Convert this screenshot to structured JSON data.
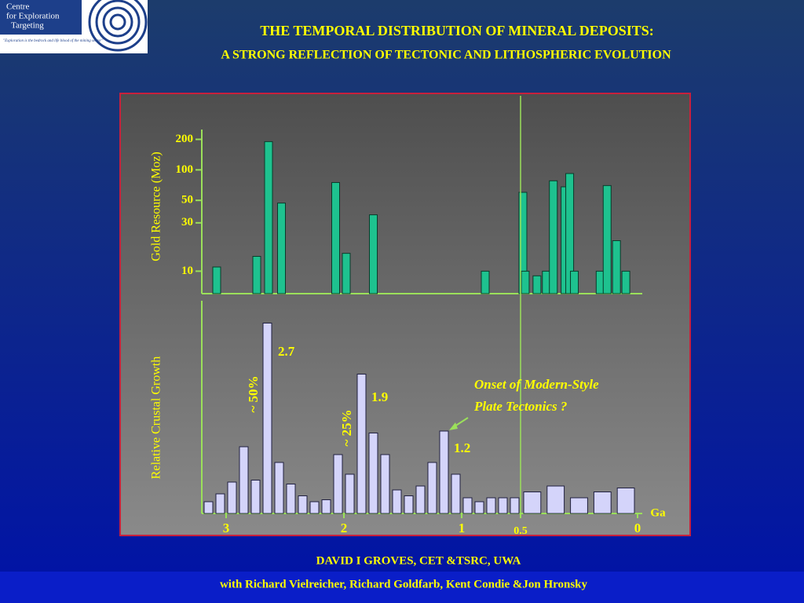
{
  "logo": {
    "lines": [
      "Centre",
      "for Exploration",
      "Targeting"
    ],
    "quote": "\"Exploration is the bedrock and life blood of the mining sector\""
  },
  "header": {
    "title": "THE TEMPORAL DISTRIBUTION OF MINERAL DEPOSITS:",
    "subtitle": "A STRONG REFLECTION OF TECTONIC AND LITHOSPHERIC EVOLUTION"
  },
  "chart_data": [
    {
      "type": "bar",
      "y_label": "Gold Resource (Moz)",
      "color": "#1ec28f",
      "log_scale": true,
      "x": [
        3.08,
        2.74,
        2.64,
        2.53,
        2.07,
        1.98,
        1.75,
        0.8,
        0.49,
        0.48,
        0.43,
        0.39,
        0.36,
        0.31,
        0.29,
        0.27,
        0.16,
        0.13,
        0.09,
        0.05
      ],
      "values": [
        11,
        14,
        190,
        47,
        75,
        15,
        36,
        10,
        60,
        10,
        9,
        10,
        78,
        68,
        92,
        10,
        10,
        70,
        20,
        10
      ],
      "xlim": [
        3.2,
        0
      ],
      "ylim": [
        6,
        250
      ],
      "yticks": [
        10,
        30,
        50,
        100,
        200
      ]
    },
    {
      "type": "histogram",
      "y_label": "Relative Crustal Growth",
      "x_label": "Ga",
      "color": "#d4d4fa",
      "bins": [
        3.2,
        3.1,
        3.0,
        2.9,
        2.8,
        2.7,
        2.6,
        2.5,
        2.4,
        2.3,
        2.2,
        2.1,
        2.0,
        1.9,
        1.8,
        1.7,
        1.6,
        1.5,
        1.4,
        1.3,
        1.2,
        1.1,
        1.0,
        0.9,
        0.8,
        0.7,
        0.6,
        0.5,
        0.4,
        0.3,
        0.2,
        0.1,
        0
      ],
      "values": [
        6,
        10,
        16,
        34,
        17,
        97,
        26,
        15,
        9,
        6,
        7,
        30,
        20,
        71,
        41,
        30,
        12,
        9,
        14,
        26,
        42,
        20,
        8,
        6,
        8,
        8,
        8,
        11,
        14,
        8,
        11,
        13
      ],
      "xlim": [
        3.2,
        0
      ],
      "ylim": [
        0,
        100
      ],
      "xticks": [
        3,
        2,
        1,
        0.5,
        0
      ],
      "annotations": [
        "2.7",
        "~ 50%",
        "1.9",
        "~ 25%",
        "1.2",
        "Onset of Modern-Style",
        "Plate Tectonics ?"
      ]
    }
  ],
  "footer": {
    "author": "DAVID I GROVES, CET &TSRC, UWA",
    "coauthors": "with Richard Vielreicher, Richard Goldfarb, Kent Condie &Jon Hronsky"
  }
}
